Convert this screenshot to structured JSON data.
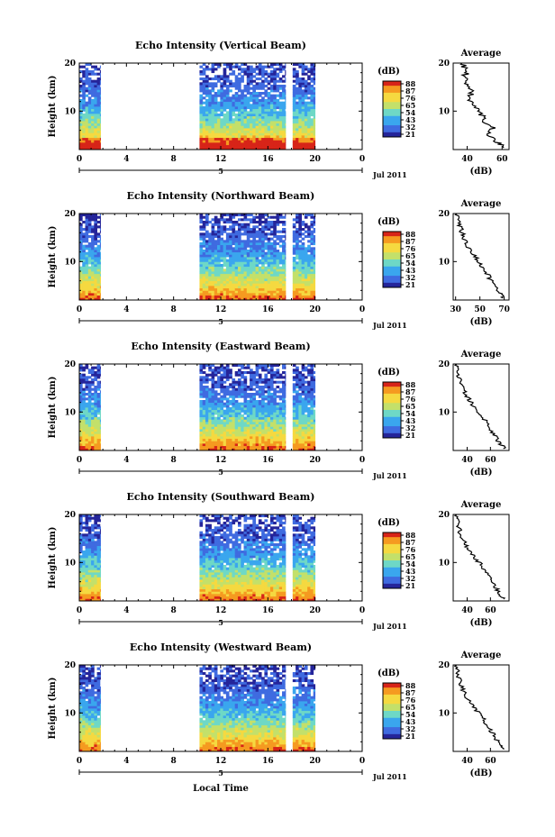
{
  "chart_data": [
    {
      "type": "heatmap",
      "title": "Echo Intensity (Vertical Beam)",
      "ylabel": "Height (km)",
      "x_ticks": [
        "0",
        "4",
        "8",
        "12",
        "16",
        "20",
        "0"
      ],
      "y_ticks": [
        "10",
        "20"
      ],
      "date_label": "Jul 2011",
      "date_day": "5",
      "colorbar": {
        "unit": "(dB)",
        "ticks": [
          "88",
          "87",
          "76",
          "65",
          "54",
          "43",
          "32",
          "21"
        ]
      },
      "xlim": [
        0,
        24
      ],
      "ylim": [
        2,
        20
      ],
      "data_segments_hours": [
        [
          0,
          1.8
        ],
        [
          10.2,
          17.5
        ],
        [
          18.1,
          20.0
        ]
      ],
      "profile": {
        "title": "Average",
        "xlabel": "(dB)",
        "x_ticks": [
          "40",
          "60"
        ],
        "y_ticks": [
          "10",
          "20"
        ],
        "xlim": [
          32,
          64
        ],
        "points": [
          [
            62,
            2.4
          ],
          [
            58,
            3.5
          ],
          [
            52,
            5.0
          ],
          [
            55,
            6.5
          ],
          [
            49,
            8.0
          ],
          [
            48,
            9.5
          ],
          [
            44,
            11
          ],
          [
            42,
            12.5
          ],
          [
            42,
            14
          ],
          [
            40,
            15.5
          ],
          [
            38,
            17
          ],
          [
            40,
            18.5
          ],
          [
            37,
            20
          ]
        ]
      }
    },
    {
      "type": "heatmap",
      "title": "Echo Intensity (Northward Beam)",
      "ylabel": "Height (km)",
      "x_ticks": [
        "0",
        "4",
        "8",
        "12",
        "16",
        "20",
        "0"
      ],
      "y_ticks": [
        "10",
        "20"
      ],
      "date_label": "Jul 2011",
      "date_day": "5",
      "colorbar": {
        "unit": "(dB)",
        "ticks": [
          "88",
          "87",
          "76",
          "65",
          "54",
          "43",
          "32",
          "21"
        ]
      },
      "xlim": [
        0,
        24
      ],
      "ylim": [
        2,
        20
      ],
      "data_segments_hours": [
        [
          0,
          1.8
        ],
        [
          10.2,
          17.5
        ],
        [
          18.1,
          20.0
        ]
      ],
      "profile": {
        "title": "Average",
        "xlabel": "(dB)",
        "x_ticks": [
          "30",
          "50",
          "70"
        ],
        "y_ticks": [
          "10",
          "20"
        ],
        "xlim": [
          28,
          74
        ],
        "points": [
          [
            70,
            2.4
          ],
          [
            66,
            3.5
          ],
          [
            62,
            5.0
          ],
          [
            58,
            6.5
          ],
          [
            55,
            8.0
          ],
          [
            50,
            9.5
          ],
          [
            46,
            11
          ],
          [
            42,
            12.5
          ],
          [
            38,
            14
          ],
          [
            36,
            15.5
          ],
          [
            34,
            17
          ],
          [
            32,
            18.5
          ],
          [
            31,
            20
          ]
        ]
      }
    },
    {
      "type": "heatmap",
      "title": "Echo Intensity (Eastward Beam)",
      "ylabel": "Height (km)",
      "x_ticks": [
        "0",
        "4",
        "8",
        "12",
        "16",
        "20",
        "0"
      ],
      "y_ticks": [
        "10",
        "20"
      ],
      "date_label": "Jul 2011",
      "date_day": "5",
      "colorbar": {
        "unit": "(dB)",
        "ticks": [
          "88",
          "87",
          "76",
          "65",
          "54",
          "43",
          "32",
          "21"
        ]
      },
      "xlim": [
        0,
        24
      ],
      "ylim": [
        2,
        20
      ],
      "data_segments_hours": [
        [
          0,
          1.8
        ],
        [
          10.2,
          17.5
        ],
        [
          18.1,
          20.0
        ]
      ],
      "profile": {
        "title": "Average",
        "xlabel": "(dB)",
        "x_ticks": [
          "40",
          "60"
        ],
        "y_ticks": [
          "10",
          "20"
        ],
        "xlim": [
          28,
          76
        ],
        "points": [
          [
            72,
            2.4
          ],
          [
            68,
            3.5
          ],
          [
            64,
            5.0
          ],
          [
            60,
            6.5
          ],
          [
            56,
            8.0
          ],
          [
            52,
            9.5
          ],
          [
            46,
            11
          ],
          [
            42,
            12.5
          ],
          [
            38,
            14
          ],
          [
            35,
            15.5
          ],
          [
            33,
            17
          ],
          [
            32,
            18.5
          ],
          [
            31,
            20
          ]
        ]
      }
    },
    {
      "type": "heatmap",
      "title": "Echo Intensity (Southward Beam)",
      "ylabel": "Height (km)",
      "x_ticks": [
        "0",
        "4",
        "8",
        "12",
        "16",
        "20",
        "0"
      ],
      "y_ticks": [
        "10",
        "20"
      ],
      "date_label": "Jul 2011",
      "date_day": "5",
      "colorbar": {
        "unit": "(dB)",
        "ticks": [
          "88",
          "87",
          "76",
          "65",
          "54",
          "43",
          "32",
          "21"
        ]
      },
      "xlim": [
        0,
        24
      ],
      "ylim": [
        2,
        20
      ],
      "data_segments_hours": [
        [
          0,
          1.8
        ],
        [
          10.2,
          17.5
        ],
        [
          18.1,
          20.0
        ]
      ],
      "profile": {
        "title": "Average",
        "xlabel": "(dB)",
        "x_ticks": [
          "40",
          "60"
        ],
        "y_ticks": [
          "10",
          "20"
        ],
        "xlim": [
          28,
          76
        ],
        "points": [
          [
            72,
            2.4
          ],
          [
            68,
            3.5
          ],
          [
            64,
            5.0
          ],
          [
            60,
            6.5
          ],
          [
            56,
            8.0
          ],
          [
            52,
            9.5
          ],
          [
            46,
            11
          ],
          [
            42,
            12.5
          ],
          [
            38,
            14
          ],
          [
            35,
            15.5
          ],
          [
            33,
            17
          ],
          [
            32,
            18.5
          ],
          [
            31,
            20
          ]
        ]
      }
    },
    {
      "type": "heatmap",
      "title": "Echo Intensity (Westward Beam)",
      "ylabel": "Height (km)",
      "x_ticks": [
        "0",
        "4",
        "8",
        "12",
        "16",
        "20",
        "0"
      ],
      "y_ticks": [
        "10",
        "20"
      ],
      "date_label": "Jul 2011",
      "date_day": "5",
      "colorbar": {
        "unit": "(dB)",
        "ticks": [
          "88",
          "87",
          "76",
          "65",
          "54",
          "43",
          "32",
          "21"
        ]
      },
      "xlim": [
        0,
        24
      ],
      "ylim": [
        2,
        20
      ],
      "data_segments_hours": [
        [
          0,
          1.8
        ],
        [
          10.2,
          17.5
        ],
        [
          18.1,
          20.0
        ]
      ],
      "profile": {
        "title": "Average",
        "xlabel": "(dB)",
        "x_ticks": [
          "40",
          "60"
        ],
        "y_ticks": [
          "10",
          "20"
        ],
        "xlim": [
          28,
          76
        ],
        "points": [
          [
            72,
            2.4
          ],
          [
            68,
            3.5
          ],
          [
            64,
            5.0
          ],
          [
            60,
            6.5
          ],
          [
            56,
            8.0
          ],
          [
            52,
            9.5
          ],
          [
            46,
            11
          ],
          [
            42,
            12.5
          ],
          [
            38,
            14
          ],
          [
            35,
            15.5
          ],
          [
            33,
            17
          ],
          [
            32,
            18.5
          ],
          [
            31,
            20
          ]
        ]
      }
    }
  ],
  "xlabel": "Local Time",
  "colormap": [
    "#25259a",
    "#3f6be0",
    "#3aa6ee",
    "#6ed8c6",
    "#c3e06a",
    "#f5d940",
    "#f59a20",
    "#d72418"
  ]
}
